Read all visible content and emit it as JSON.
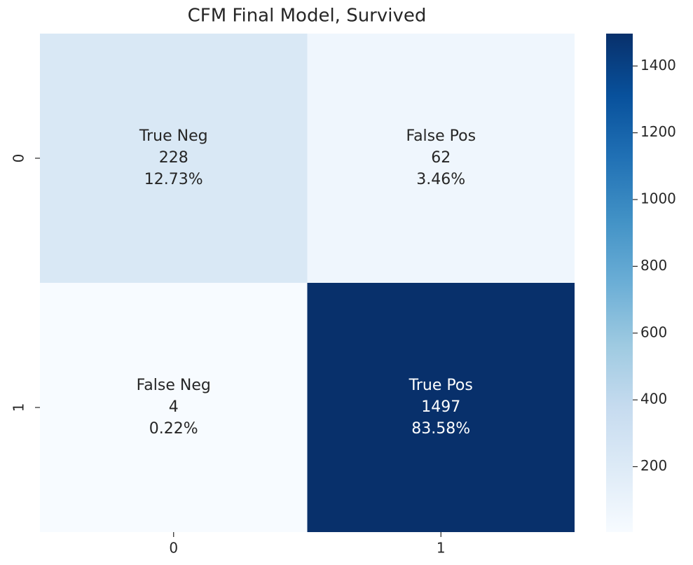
{
  "chart_data": {
    "type": "heatmap",
    "title": "CFM Final Model, Survived",
    "x_categories": [
      "0",
      "1"
    ],
    "y_categories": [
      "0",
      "1"
    ],
    "values": [
      [
        228,
        62
      ],
      [
        4,
        1497
      ]
    ],
    "cell_names": [
      [
        "True Neg",
        "False Pos"
      ],
      [
        "False Neg",
        "True Pos"
      ]
    ],
    "percentages": [
      [
        12.73,
        3.46
      ],
      [
        0.22,
        83.58
      ]
    ],
    "percentage_labels": [
      [
        "12.73%",
        "3.46%"
      ],
      [
        "0.22%",
        "83.58%"
      ]
    ],
    "zlim": [
      4,
      1497
    ],
    "zticks": [
      200,
      400,
      600,
      800,
      1000,
      1200,
      1400
    ],
    "colors": [
      "#f7fbff",
      "#deebf7",
      "#c6dbef",
      "#9ecae1",
      "#6baed6",
      "#4292c6",
      "#2171b5",
      "#08519c",
      "#08306b"
    ]
  }
}
